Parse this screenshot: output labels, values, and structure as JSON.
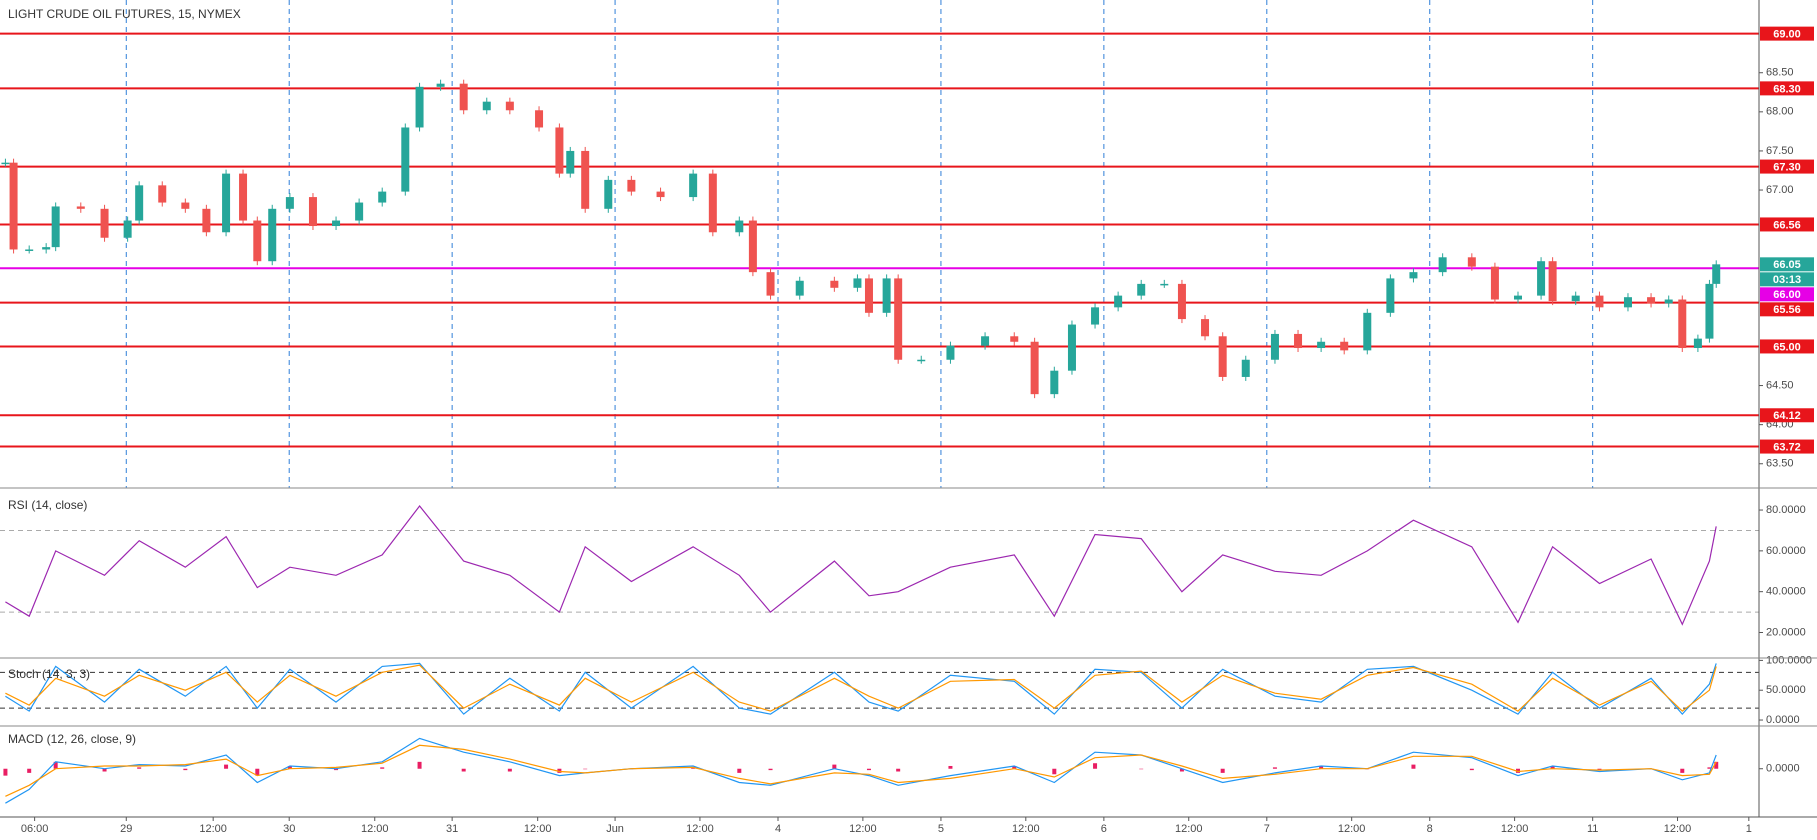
{
  "chart_data": [
    {
      "type": "candlestick",
      "title": "LIGHT CRUDE OIL FUTURES, 15, NYMEX",
      "up_color": "#26a69a",
      "down_color": "#ef5350",
      "xlim": [
        -18.6,
        240.5
      ],
      "ylim": [
        63.19,
        69.43
      ],
      "xticks": [
        {
          "value": -13.5,
          "label": "06:00"
        },
        {
          "value": 0,
          "label": "29"
        },
        {
          "value": 12.8,
          "label": "12:00"
        },
        {
          "value": 24,
          "label": "30"
        },
        {
          "value": 36.6,
          "label": "12:00"
        },
        {
          "value": 48,
          "label": "31"
        },
        {
          "value": 60.6,
          "label": "12:00"
        },
        {
          "value": 72,
          "label": "Jun"
        },
        {
          "value": 84.5,
          "label": "12:00"
        },
        {
          "value": 96,
          "label": "4"
        },
        {
          "value": 108.5,
          "label": "12:00"
        },
        {
          "value": 120,
          "label": "5"
        },
        {
          "value": 132.5,
          "label": "12:00"
        },
        {
          "value": 144,
          "label": "6"
        },
        {
          "value": 156.5,
          "label": "12:00"
        },
        {
          "value": 168,
          "label": "7"
        },
        {
          "value": 180.5,
          "label": "12:00"
        },
        {
          "value": 192,
          "label": "8"
        },
        {
          "value": 204.5,
          "label": "12:00"
        },
        {
          "value": 216,
          "label": "11"
        },
        {
          "value": 228.5,
          "label": "12:00"
        },
        {
          "value": 239,
          "label": "1"
        }
      ],
      "yticks": [
        {
          "value": 63.5,
          "label": "63.50"
        },
        {
          "value": 64,
          "label": "64.00"
        },
        {
          "value": 64.5,
          "label": "64.50"
        },
        {
          "value": 67,
          "label": "67.00"
        },
        {
          "value": 67.5,
          "label": "67.50"
        },
        {
          "value": 68,
          "label": "68.00"
        },
        {
          "value": 68.5,
          "label": "68.50"
        }
      ],
      "levels": [
        {
          "value": 69,
          "label": "69.00"
        },
        {
          "value": 68.3,
          "label": "68.30"
        },
        {
          "value": 67.3,
          "label": "67.30"
        },
        {
          "value": 66.56,
          "label": "66.56"
        },
        {
          "value": 65.56,
          "label": "65.56"
        },
        {
          "value": 65,
          "label": "65.00"
        },
        {
          "value": 64.12,
          "label": "64.12"
        },
        {
          "value": 63.72,
          "label": "63.72"
        }
      ],
      "level_color": "#e8151b",
      "pivot": {
        "value": 66,
        "label": "66.00"
      },
      "pivot_color": "#e600e6",
      "last_price": 66.05,
      "last_color": "#26a69a",
      "countdown": "03:13",
      "x": [
        -17.8,
        -16.6,
        -14.3,
        -11.8,
        -10.4,
        -6.7,
        -3.2,
        0.2,
        1.9,
        5.3,
        8.7,
        11.8,
        14.7,
        17.2,
        19.3,
        21.5,
        24.1,
        27.5,
        30.9,
        34.3,
        37.7,
        41.1,
        43.2,
        46.3,
        49.7,
        53.1,
        56.5,
        60.8,
        63.8,
        65.4,
        67.6,
        71.0,
        74.4,
        78.7,
        83.5,
        86.4,
        90.3,
        92.3,
        94.9,
        99.2,
        104.3,
        107.7,
        109.4,
        112.0,
        113.7,
        117.1,
        121.4,
        126.5,
        130.8,
        133.8,
        136.7,
        139.3,
        142.7,
        146.1,
        149.5,
        152.9,
        155.5,
        158.9,
        161.5,
        164.9,
        169.2,
        172.6,
        176.0,
        179.4,
        182.8,
        186.2,
        189.6,
        193.9,
        198.2,
        201.6,
        205.0,
        208.4,
        210.1,
        213.5,
        217.0,
        221.2,
        224.6,
        227.2,
        229.2,
        231.5,
        233.2,
        234.2
      ],
      "close": [
        67.35,
        66.24,
        66.24,
        66.27,
        66.79,
        66.76,
        66.39,
        66.61,
        67.06,
        66.84,
        66.76,
        66.46,
        67.21,
        66.61,
        66.09,
        66.76,
        66.91,
        66.54,
        66.61,
        66.84,
        66.98,
        67.8,
        68.32,
        68.36,
        68.02,
        68.13,
        68.02,
        67.8,
        67.21,
        67.5,
        66.76,
        67.13,
        66.98,
        66.91,
        67.21,
        66.46,
        66.61,
        65.95,
        65.65,
        65.84,
        65.75,
        65.87,
        65.43,
        65.87,
        64.83,
        64.83,
        65.01,
        65.13,
        65.06,
        64.39,
        64.69,
        65.28,
        65.5,
        65.65,
        65.8,
        65.8,
        65.35,
        65.13,
        64.61,
        64.83,
        65.16,
        64.98,
        65.06,
        64.95,
        65.43,
        65.87,
        65.95,
        66.14,
        66.02,
        65.6,
        65.65,
        66.09,
        65.58,
        65.65,
        65.5,
        65.63,
        65.55,
        65.6,
        64.98,
        65.1,
        65.8,
        66.05
      ]
    },
    {
      "type": "line",
      "title": "RSI (14, close)",
      "ylim": [
        7.5,
        90.8
      ],
      "yticks": [
        {
          "value": 20,
          "label": "20.0000"
        },
        {
          "value": 40,
          "label": "40.0000"
        },
        {
          "value": 60,
          "label": "60.0000"
        },
        {
          "value": 80,
          "label": "80.0000"
        }
      ],
      "bands": [
        30,
        70
      ],
      "x": [
        -17.8,
        -14.3,
        -10.4,
        -3.2,
        1.9,
        8.7,
        14.7,
        19.3,
        24.1,
        30.9,
        37.7,
        43.2,
        49.7,
        56.5,
        63.8,
        67.6,
        74.4,
        83.5,
        90.3,
        94.9,
        104.3,
        109.4,
        113.7,
        121.4,
        130.8,
        136.7,
        142.7,
        149.5,
        155.5,
        161.5,
        169.2,
        176.0,
        182.8,
        189.6,
        198.2,
        205.0,
        210.1,
        217.0,
        224.6,
        229.2,
        233.2,
        234.2
      ],
      "series": [
        {
          "color": "#9c27b0",
          "values": [
            35,
            28,
            60,
            48,
            65,
            52,
            67,
            42,
            52,
            48,
            58,
            82,
            55,
            48,
            30,
            62,
            45,
            62,
            48,
            30,
            55,
            38,
            40,
            52,
            58,
            28,
            68,
            66,
            40,
            58,
            50,
            48,
            60,
            75,
            62,
            25,
            62,
            44,
            56,
            24,
            55,
            72
          ]
        }
      ]
    },
    {
      "type": "line",
      "title": "Stoch (14, 3, 3)",
      "ylim": [
        -10,
        104
      ],
      "yticks": [
        {
          "value": 0,
          "label": "0.0000"
        },
        {
          "value": 50,
          "label": "50.0000"
        },
        {
          "value": 100,
          "label": "100.0000"
        }
      ],
      "bands": [
        20,
        80
      ],
      "x": [
        -17.8,
        -14.3,
        -10.4,
        -3.2,
        1.9,
        8.7,
        14.7,
        19.3,
        24.1,
        30.9,
        37.7,
        43.2,
        49.7,
        56.5,
        63.8,
        67.6,
        74.4,
        83.5,
        90.3,
        94.9,
        104.3,
        109.4,
        113.7,
        121.4,
        130.8,
        136.7,
        142.7,
        149.5,
        155.5,
        161.5,
        169.2,
        176.0,
        182.8,
        189.6,
        198.2,
        205.0,
        210.1,
        217.0,
        224.6,
        229.2,
        233.2,
        234.2
      ],
      "series": [
        {
          "color": "#2196f3",
          "values": [
            40,
            15,
            90,
            30,
            85,
            40,
            90,
            20,
            85,
            30,
            90,
            95,
            10,
            70,
            15,
            80,
            20,
            90,
            20,
            10,
            80,
            30,
            15,
            75,
            65,
            10,
            85,
            80,
            20,
            85,
            40,
            30,
            85,
            90,
            50,
            10,
            80,
            20,
            70,
            10,
            60,
            95
          ]
        },
        {
          "color": "#ff9800",
          "values": [
            45,
            25,
            70,
            40,
            75,
            50,
            80,
            30,
            75,
            40,
            80,
            92,
            20,
            60,
            25,
            70,
            30,
            80,
            30,
            15,
            70,
            40,
            20,
            65,
            68,
            20,
            75,
            82,
            30,
            75,
            45,
            35,
            75,
            88,
            60,
            15,
            70,
            25,
            65,
            15,
            50,
            90
          ]
        }
      ]
    },
    {
      "type": "line",
      "title": "MACD (12, 26, close, 9)",
      "ylim": [
        -0.35,
        0.31
      ],
      "yticks": [
        {
          "value": 0,
          "label": "0.0000"
        }
      ],
      "x": [
        -17.8,
        -14.3,
        -10.4,
        -3.2,
        1.9,
        8.7,
        14.7,
        19.3,
        24.1,
        30.9,
        37.7,
        43.2,
        49.7,
        56.5,
        63.8,
        67.6,
        74.4,
        83.5,
        90.3,
        94.9,
        104.3,
        109.4,
        113.7,
        121.4,
        130.8,
        136.7,
        142.7,
        149.5,
        155.5,
        161.5,
        169.2,
        176.0,
        182.8,
        189.6,
        198.2,
        205.0,
        210.1,
        217.0,
        224.6,
        229.2,
        233.2,
        234.2
      ],
      "histogram": {
        "color": "#e91e63",
        "values": [
          -0.05,
          -0.03,
          0.05,
          -0.02,
          0.01,
          -0.01,
          0.03,
          -0.05,
          0.02,
          -0.01,
          0.01,
          0.05,
          -0.02,
          -0.02,
          -0.03,
          0,
          0,
          0.01,
          -0.03,
          -0.01,
          0.03,
          -0.01,
          -0.02,
          0.02,
          0.02,
          -0.04,
          0.04,
          0,
          -0.02,
          -0.03,
          0.01,
          0.02,
          0,
          0.03,
          -0.01,
          -0.03,
          0.02,
          -0.01,
          0,
          -0.03,
          0.01,
          0.05
        ]
      },
      "series": [
        {
          "color": "#2196f3",
          "values": [
            -0.25,
            -0.15,
            0.05,
            0.0,
            0.03,
            0.02,
            0.1,
            -0.1,
            0.02,
            0.0,
            0.05,
            0.22,
            0.12,
            0.05,
            -0.05,
            -0.03,
            0.0,
            0.02,
            -0.1,
            -0.12,
            0.0,
            -0.05,
            -0.12,
            -0.05,
            0.02,
            -0.1,
            0.12,
            0.1,
            0.0,
            -0.1,
            -0.03,
            0.02,
            0.0,
            0.12,
            0.08,
            -0.05,
            0.02,
            -0.02,
            0.0,
            -0.08,
            -0.03,
            0.1
          ]
        },
        {
          "color": "#ff9800",
          "values": [
            -0.2,
            -0.12,
            0.0,
            0.02,
            0.02,
            0.03,
            0.07,
            -0.05,
            0.0,
            0.01,
            0.04,
            0.17,
            0.14,
            0.07,
            -0.02,
            -0.03,
            0.0,
            0.01,
            -0.07,
            -0.11,
            -0.03,
            -0.04,
            -0.1,
            -0.07,
            0.0,
            -0.06,
            0.08,
            0.1,
            0.02,
            -0.07,
            -0.04,
            0.0,
            0.0,
            0.09,
            0.09,
            -0.02,
            0.0,
            -0.01,
            0.0,
            -0.05,
            -0.04,
            0.05
          ]
        }
      ]
    }
  ]
}
